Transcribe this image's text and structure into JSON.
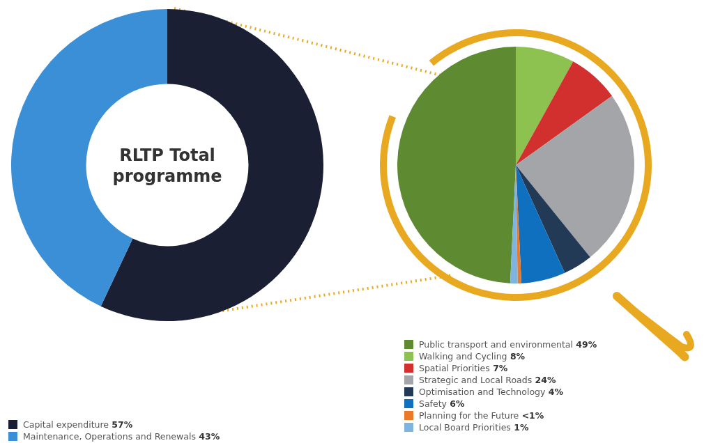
{
  "chart_data": [
    {
      "type": "donut",
      "title": "RLTP Total programme",
      "categories": [
        "Capital expenditure",
        "Maintenance, Operations and Renewals"
      ],
      "values": [
        57,
        43
      ],
      "value_labels": [
        "57%",
        "43%"
      ],
      "colors": [
        "#1b1f33",
        "#3a8fd6"
      ],
      "legend": "bottom left"
    },
    {
      "type": "pie",
      "categories": [
        "Public transport and environmental",
        "Walking and Cycling",
        "Spatial Priorities",
        "Strategic and Local Roads",
        "Optimisation and Technology",
        "Safety",
        "Planning for the Future",
        "Local Board Priorities"
      ],
      "values": [
        49,
        8,
        7,
        24,
        4,
        6,
        0.5,
        1
      ],
      "value_labels": [
        "49%",
        "8%",
        "7%",
        "24%",
        "4%",
        "6%",
        "<1%",
        "1%"
      ],
      "colors": [
        "#5e8a32",
        "#8dc150",
        "#d2302f",
        "#a3a5a8",
        "#233a57",
        "#0f70c0",
        "#ea7a28",
        "#7db4e0"
      ],
      "legend": "bottom"
    }
  ]
}
